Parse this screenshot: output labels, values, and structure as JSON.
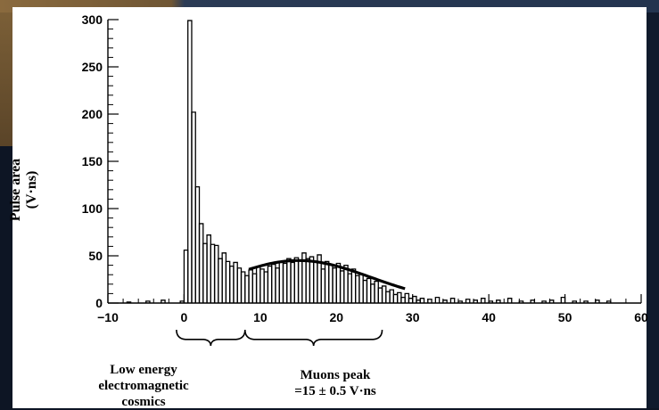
{
  "chart_data": {
    "type": "histogram",
    "title": "",
    "xlabel": "",
    "ylabel": "Pulse area",
    "ylabel_unit": "(V·ns)",
    "xlim": [
      -10,
      60
    ],
    "ylim": [
      0,
      300
    ],
    "x_ticks": [
      "−10",
      "0",
      "10",
      "20",
      "30",
      "40",
      "50",
      "60"
    ],
    "y_ticks": [
      "0",
      "50",
      "100",
      "150",
      "200",
      "250",
      "300"
    ],
    "grid": false,
    "legend": "none",
    "series": [
      {
        "bin_width": 0.5,
        "bins": [
          {
            "x": -7.5,
            "y": 1
          },
          {
            "x": -5,
            "y": 2
          },
          {
            "x": -3,
            "y": 3
          },
          {
            "x": -0.5,
            "y": 2
          },
          {
            "x": 0,
            "y": 56
          },
          {
            "x": 0.5,
            "y": 299
          },
          {
            "x": 1,
            "y": 202
          },
          {
            "x": 1.5,
            "y": 123
          },
          {
            "x": 2,
            "y": 84
          },
          {
            "x": 2.5,
            "y": 63
          },
          {
            "x": 3,
            "y": 72
          },
          {
            "x": 3.5,
            "y": 62
          },
          {
            "x": 4,
            "y": 61
          },
          {
            "x": 4.5,
            "y": 47
          },
          {
            "x": 5,
            "y": 53
          },
          {
            "x": 5.5,
            "y": 44
          },
          {
            "x": 6,
            "y": 39
          },
          {
            "x": 6.5,
            "y": 43
          },
          {
            "x": 7,
            "y": 37
          },
          {
            "x": 7.5,
            "y": 33
          },
          {
            "x": 8,
            "y": 29
          },
          {
            "x": 8.5,
            "y": 35
          },
          {
            "x": 9,
            "y": 31
          },
          {
            "x": 9.5,
            "y": 38
          },
          {
            "x": 10,
            "y": 36
          },
          {
            "x": 10.5,
            "y": 33
          },
          {
            "x": 11,
            "y": 39
          },
          {
            "x": 11.5,
            "y": 41
          },
          {
            "x": 12,
            "y": 37
          },
          {
            "x": 12.5,
            "y": 44
          },
          {
            "x": 13,
            "y": 42
          },
          {
            "x": 13.5,
            "y": 47
          },
          {
            "x": 14,
            "y": 43
          },
          {
            "x": 14.5,
            "y": 48
          },
          {
            "x": 15,
            "y": 45
          },
          {
            "x": 15.5,
            "y": 53
          },
          {
            "x": 16,
            "y": 47
          },
          {
            "x": 16.5,
            "y": 49
          },
          {
            "x": 17,
            "y": 44
          },
          {
            "x": 17.5,
            "y": 51
          },
          {
            "x": 18,
            "y": 36
          },
          {
            "x": 18.5,
            "y": 44
          },
          {
            "x": 19,
            "y": 41
          },
          {
            "x": 19.5,
            "y": 37
          },
          {
            "x": 20,
            "y": 42
          },
          {
            "x": 20.5,
            "y": 34
          },
          {
            "x": 21,
            "y": 40
          },
          {
            "x": 21.5,
            "y": 31
          },
          {
            "x": 22,
            "y": 36
          },
          {
            "x": 22.5,
            "y": 29
          },
          {
            "x": 23,
            "y": 31
          },
          {
            "x": 23.5,
            "y": 24
          },
          {
            "x": 24,
            "y": 26
          },
          {
            "x": 24.5,
            "y": 20
          },
          {
            "x": 25,
            "y": 23
          },
          {
            "x": 25.5,
            "y": 16
          },
          {
            "x": 26,
            "y": 18
          },
          {
            "x": 26.5,
            "y": 12
          },
          {
            "x": 27,
            "y": 14
          },
          {
            "x": 27.5,
            "y": 9
          },
          {
            "x": 28,
            "y": 11
          },
          {
            "x": 28.5,
            "y": 6
          },
          {
            "x": 29,
            "y": 10
          },
          {
            "x": 29.5,
            "y": 5
          },
          {
            "x": 30,
            "y": 7
          },
          {
            "x": 30.5,
            "y": 3
          },
          {
            "x": 31,
            "y": 5
          },
          {
            "x": 32,
            "y": 4
          },
          {
            "x": 33,
            "y": 6
          },
          {
            "x": 34,
            "y": 3
          },
          {
            "x": 35,
            "y": 5
          },
          {
            "x": 36,
            "y": 2
          },
          {
            "x": 37,
            "y": 4
          },
          {
            "x": 38,
            "y": 3
          },
          {
            "x": 39,
            "y": 5
          },
          {
            "x": 40,
            "y": 2
          },
          {
            "x": 41,
            "y": 3
          },
          {
            "x": 42.5,
            "y": 5
          },
          {
            "x": 44,
            "y": 2
          },
          {
            "x": 45.5,
            "y": 3
          },
          {
            "x": 47,
            "y": 2
          },
          {
            "x": 48,
            "y": 3
          },
          {
            "x": 49.5,
            "y": 6
          },
          {
            "x": 51,
            "y": 2
          },
          {
            "x": 52.5,
            "y": 2
          },
          {
            "x": 54,
            "y": 3
          },
          {
            "x": 55.5,
            "y": 2
          }
        ]
      }
    ],
    "fit": {
      "type": "gaussian",
      "mean": 15,
      "peak": 45,
      "sigma": 9.5,
      "x_range": [
        8.5,
        29
      ]
    },
    "annotations": [
      {
        "text_lines": [
          "Low energy",
          "electromagnetic",
          "cosmics"
        ],
        "x_range": [
          -1,
          8
        ]
      },
      {
        "text_lines": [
          "Muons peak",
          "=15 ± 0.5 V·ns"
        ],
        "x_range": [
          8,
          26
        ]
      }
    ]
  }
}
